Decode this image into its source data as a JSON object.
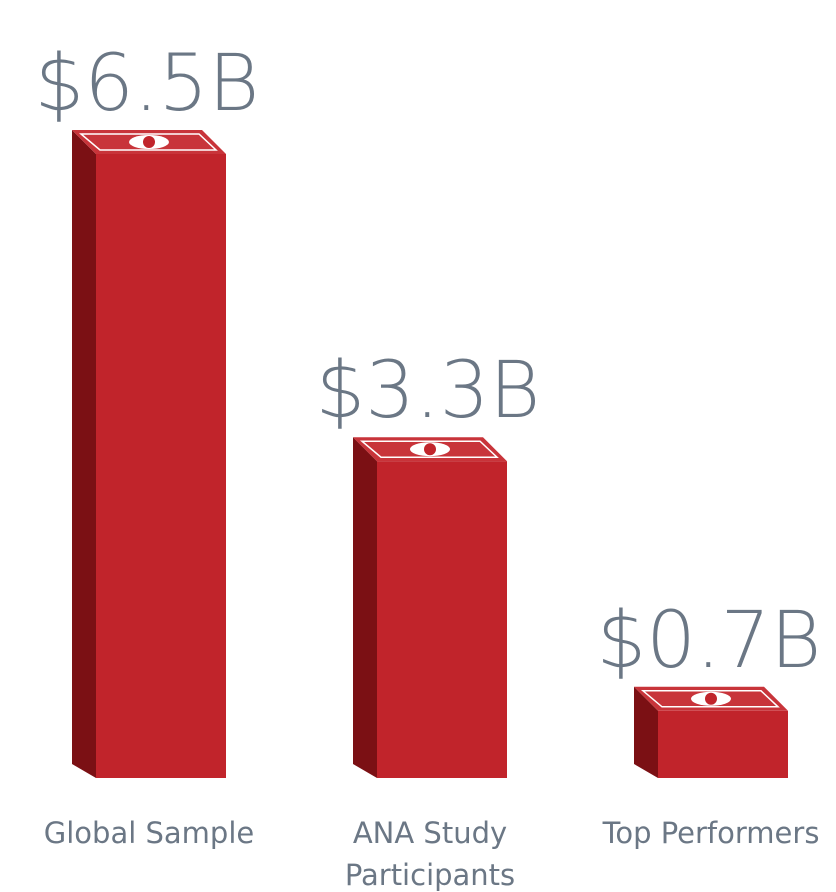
{
  "chart_data": {
    "type": "bar3d",
    "categories": [
      "Global Sample",
      "ANA Study Participants",
      "Top Performers"
    ],
    "values": [
      6.5,
      3.3,
      0.7
    ],
    "value_labels": [
      "$6.5B",
      "$3.3B",
      "$0.7B"
    ],
    "color": "#c1242b"
  }
}
